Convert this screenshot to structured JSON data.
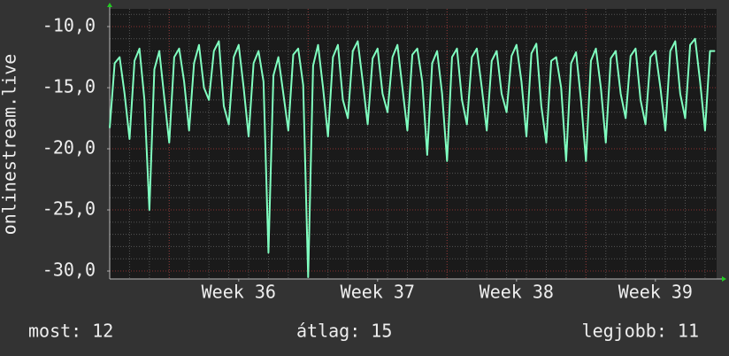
{
  "chart_data": {
    "type": "line",
    "ylabel": "onlinestream.live",
    "color": "#80ffc0",
    "x": [
      0,
      6,
      12,
      18,
      24,
      30,
      36,
      42,
      48,
      54,
      60,
      66,
      72,
      78,
      84,
      90,
      96,
      102,
      108,
      114,
      120,
      126,
      132,
      138,
      144,
      150,
      156,
      162,
      168,
      174,
      180,
      186,
      192,
      198,
      204,
      210,
      216,
      222,
      228,
      234,
      240,
      246,
      252,
      258,
      264,
      270,
      276,
      282,
      288,
      294,
      300,
      306,
      312,
      318,
      324,
      330,
      336,
      342,
      348,
      354,
      360,
      366,
      372,
      378,
      384,
      390,
      396,
      402,
      408,
      414,
      420,
      426,
      432,
      438,
      444,
      450,
      456,
      462,
      468,
      474,
      480,
      486,
      492,
      498,
      504,
      510,
      516,
      522,
      528,
      534,
      540,
      546,
      552,
      558,
      564,
      570,
      576,
      582,
      588,
      594,
      600,
      606,
      612,
      618,
      624,
      630,
      636,
      642,
      648,
      654,
      660,
      666,
      672,
      678,
      684,
      690,
      696,
      702,
      708,
      714,
      720,
      726,
      732
    ],
    "values": [
      -18.3,
      -13,
      -12.5,
      -15.5,
      -19.2,
      -12.8,
      -11.8,
      -16,
      -25,
      -13.5,
      -12,
      -15.8,
      -19.5,
      -12.5,
      -11.8,
      -14.5,
      -18.5,
      -13,
      -11.5,
      -15,
      -16,
      -12,
      -11.2,
      -16.5,
      -18,
      -12.5,
      -11.5,
      -15,
      -19,
      -13,
      -12,
      -14.5,
      -28.5,
      -14,
      -12.5,
      -15.5,
      -18.5,
      -12.3,
      -11.8,
      -14.8,
      -30.5,
      -13.2,
      -11.5,
      -15,
      -19,
      -12.5,
      -11.5,
      -16,
      -17.5,
      -12,
      -11.2,
      -14.5,
      -18,
      -12.6,
      -11.8,
      -15.5,
      -17,
      -12.5,
      -11.5,
      -15,
      -18.5,
      -12.3,
      -11.8,
      -14.5,
      -20.5,
      -13,
      -12,
      -15.5,
      -21,
      -12.5,
      -11.8,
      -16,
      -18,
      -12.5,
      -11.8,
      -15,
      -18.5,
      -12.8,
      -12,
      -15.5,
      -17,
      -12.4,
      -11.5,
      -14.5,
      -19,
      -12.2,
      -11.4,
      -16.5,
      -19.5,
      -12.8,
      -12.5,
      -15,
      -21,
      -13,
      -12.1,
      -16,
      -21,
      -12.8,
      -11.8,
      -15,
      -19.5,
      -12.6,
      -12,
      -15.5,
      -17.5,
      -12.4,
      -11.8,
      -16,
      -18,
      -12.5,
      -12,
      -15,
      -18.5,
      -12,
      -11.2,
      -15.5,
      -17.5,
      -11.5,
      -11,
      -14.5,
      -18.5,
      -12,
      -12
    ],
    "xlim": [
      0,
      734
    ],
    "xticks": [
      {
        "value": 156,
        "label": "Week 36"
      },
      {
        "value": 324,
        "label": "Week 37"
      },
      {
        "value": 492,
        "label": "Week 38"
      },
      {
        "value": 660,
        "label": "Week 39"
      }
    ],
    "ylim": [
      -30.65,
      -8.55
    ],
    "yticks": [
      {
        "value": -30,
        "label": "-30,0"
      },
      {
        "value": -25,
        "label": "-25,0"
      },
      {
        "value": -20,
        "label": "-20,0"
      },
      {
        "value": -15,
        "label": "-15,0"
      },
      {
        "value": -10,
        "label": "-10,0"
      }
    ],
    "grid": true,
    "annotations": [
      "most: 12",
      "átlag: 15",
      "legjobb: 11"
    ]
  }
}
